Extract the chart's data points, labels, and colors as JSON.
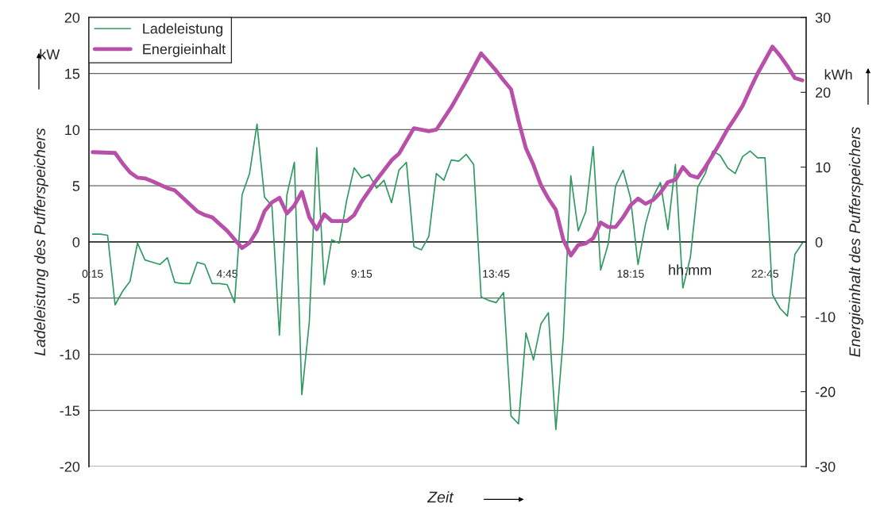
{
  "chart_data": {
    "type": "line",
    "xlabel": "Zeit",
    "ylabel": "Ladeleistung des Pufferspeichers",
    "y2label": "Energieinhalt des Pufferspeichers",
    "annotations": [
      "kW",
      "kWh",
      "hh:mm"
    ],
    "x": [
      0.25,
      0.5,
      0.75,
      1.0,
      1.25,
      1.5,
      1.75,
      2.0,
      2.25,
      2.5,
      2.75,
      3.0,
      3.25,
      3.5,
      3.75,
      4.0,
      4.25,
      4.5,
      4.75,
      5.0,
      5.25,
      5.5,
      5.75,
      6.0,
      6.25,
      6.5,
      6.75,
      7.0,
      7.25,
      7.5,
      7.75,
      8.0,
      8.25,
      8.5,
      8.75,
      9.0,
      9.25,
      9.5,
      9.75,
      10.0,
      10.25,
      10.5,
      10.75,
      11.0,
      11.25,
      11.5,
      11.75,
      12.0,
      12.25,
      12.5,
      12.75,
      13.0,
      13.25,
      13.5,
      13.75,
      14.0,
      14.25,
      14.5,
      14.75,
      15.0,
      15.25,
      15.5,
      15.75,
      16.0,
      16.25,
      16.5,
      16.75,
      17.0,
      17.25,
      17.5,
      17.75,
      18.0,
      18.25,
      18.5,
      18.75,
      19.0,
      19.25,
      19.5,
      19.75,
      20.0,
      20.25,
      20.5,
      20.75,
      21.0,
      21.25,
      21.5,
      21.75,
      22.0,
      22.25,
      22.5,
      22.75,
      23.0,
      23.25,
      23.5,
      23.75,
      24.0
    ],
    "series": [
      {
        "name": "Ladeleistung",
        "color": "#2e9960",
        "values": [
          0.7,
          0.7,
          0.6,
          -5.6,
          -4.4,
          -3.5,
          -0.1,
          -1.6,
          -1.8,
          -2.0,
          -1.4,
          -3.6,
          -3.7,
          -3.7,
          -1.8,
          -2.0,
          -3.7,
          -3.7,
          -3.8,
          -5.4,
          4.2,
          6.1,
          10.5,
          4.0,
          3.2,
          -8.3,
          4.2,
          7.1,
          -13.6,
          -7.1,
          8.4,
          -3.8,
          0.2,
          -0.1,
          3.7,
          6.6,
          5.7,
          6.0,
          4.8,
          5.5,
          3.5,
          6.4,
          7.1,
          -0.4,
          -0.7,
          0.5,
          6.1,
          5.5,
          7.3,
          7.2,
          7.8,
          6.9,
          -4.9,
          -5.2,
          -5.4,
          -4.5,
          -15.5,
          -16.2,
          -8.1,
          -10.5,
          -7.3,
          -6.3,
          -16.7,
          -8.5,
          5.9,
          1.0,
          2.7,
          8.5,
          -2.5,
          -0.2,
          5.0,
          6.4,
          3.9,
          -2.0,
          1.6,
          4.0,
          5.3,
          1.1,
          6.9,
          -4.1,
          -1.4,
          4.9,
          6.1,
          8.1,
          7.7,
          6.6,
          6.1,
          7.6,
          8.1,
          7.5,
          7.5,
          -4.7,
          -5.9,
          -6.6,
          -1.1,
          -0.1
        ]
      },
      {
        "name": "Energieinhalt",
        "color": "#b84fa8",
        "axis": "y2",
        "x": [
          0.25,
          1.0,
          1.25,
          1.5,
          1.75,
          2.0,
          2.25,
          2.75,
          3.0,
          3.75,
          4.0,
          4.25,
          4.75,
          5.25,
          5.5,
          5.75,
          6.0,
          6.25,
          6.5,
          6.75,
          7.0,
          7.25,
          7.5,
          7.75,
          8.0,
          8.25,
          8.75,
          9.0,
          9.25,
          9.75,
          10.25,
          10.5,
          11.0,
          11.5,
          11.75,
          12.25,
          12.75,
          13.25,
          13.75,
          14.0,
          14.25,
          14.5,
          14.75,
          15.0,
          15.25,
          15.5,
          15.75,
          16.0,
          16.25,
          16.5,
          16.75,
          17.0,
          17.25,
          17.5,
          17.75,
          18.0,
          18.25,
          18.5,
          18.75,
          19.0,
          19.25,
          19.5,
          19.75,
          20.0,
          20.25,
          20.5,
          20.75,
          21.0,
          21.25,
          21.5,
          21.75,
          22.0,
          22.25,
          22.5,
          22.75,
          23.0,
          23.25,
          23.5,
          23.75,
          24.0
        ],
        "values": [
          12.0,
          11.9,
          10.5,
          9.3,
          8.6,
          8.5,
          8.1,
          7.2,
          6.9,
          4.1,
          3.6,
          3.3,
          1.5,
          -0.8,
          -0.1,
          1.5,
          4.1,
          5.3,
          5.9,
          3.8,
          4.9,
          6.7,
          3.3,
          1.7,
          3.7,
          2.8,
          2.8,
          3.6,
          5.4,
          8.3,
          10.9,
          11.8,
          15.2,
          14.8,
          15.0,
          18.0,
          21.5,
          25.2,
          22.9,
          21.6,
          20.4,
          16.2,
          12.5,
          10.3,
          7.6,
          5.8,
          4.3,
          0.3,
          -1.8,
          -0.4,
          -0.2,
          0.5,
          2.6,
          2.0,
          2.0,
          3.3,
          4.9,
          5.8,
          5.1,
          5.6,
          6.6,
          8.0,
          8.3,
          10.0,
          8.9,
          8.6,
          10.0,
          11.6,
          13.3,
          15.1,
          16.6,
          18.2,
          20.4,
          22.5,
          24.3,
          26.1,
          24.9,
          23.5,
          21.9,
          21.6
        ]
      }
    ],
    "xlim": [
      0.125,
      24.125
    ],
    "xticks": [
      {
        "value": 0.25,
        "label": "0:15"
      },
      {
        "value": 4.75,
        "label": "4:45"
      },
      {
        "value": 9.25,
        "label": "9:15"
      },
      {
        "value": 13.75,
        "label": "13:45"
      },
      {
        "value": 18.25,
        "label": "18:15"
      },
      {
        "value": 22.75,
        "label": "22:45"
      }
    ],
    "ylim": [
      -20,
      20
    ],
    "yticks": [
      -20,
      -15,
      -10,
      -5,
      0,
      5,
      10,
      15,
      20
    ],
    "y2lim": [
      -30,
      30
    ],
    "y2ticks": [
      -30,
      -20,
      -10,
      0,
      10,
      20,
      30
    ],
    "grid": "y",
    "legend": "top left"
  }
}
